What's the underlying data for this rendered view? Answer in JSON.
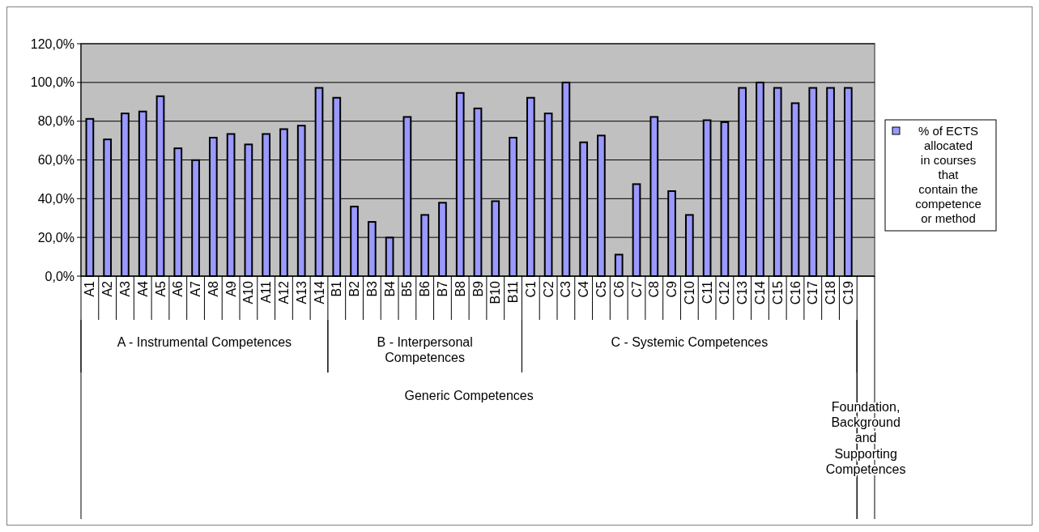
{
  "chart_data": {
    "type": "bar",
    "categories": [
      "A1",
      "A2",
      "A3",
      "A4",
      "A5",
      "A6",
      "A7",
      "A8",
      "A9",
      "A10",
      "A11",
      "A12",
      "A13",
      "A14",
      "B1",
      "B2",
      "B3",
      "B4",
      "B5",
      "B6",
      "B7",
      "B8",
      "B9",
      "B10",
      "B11",
      "C1",
      "C2",
      "C3",
      "C4",
      "C5",
      "C6",
      "C7",
      "C8",
      "C9",
      "C10",
      "C11",
      "C12",
      "C13",
      "C14",
      "C15",
      "C16",
      "C17",
      "C18",
      "C19",
      null
    ],
    "series": [
      {
        "name": "% of ECTS allocated in courses that contain the competence or method",
        "color": "#9999ff",
        "values": [
          81.2,
          70.6,
          84.0,
          85.0,
          92.9,
          66.0,
          59.9,
          71.5,
          73.4,
          68.0,
          73.4,
          75.9,
          77.7,
          97.2,
          92.1,
          35.9,
          28.0,
          19.9,
          82.2,
          31.6,
          37.9,
          94.6,
          86.6,
          38.7,
          71.5,
          92.1,
          84.0,
          100,
          69.1,
          72.6,
          11.1,
          47.5,
          82.2,
          43.9,
          31.6,
          80.5,
          79.5,
          97.2,
          100,
          97.2,
          89.3,
          97.2,
          97.2,
          97.2,
          null
        ]
      }
    ],
    "ylim": [
      0,
      120
    ],
    "yticks": [
      {
        "value": 0,
        "label": "0,0%"
      },
      {
        "value": 20,
        "label": "20,0%"
      },
      {
        "value": 40,
        "label": "40,0%"
      },
      {
        "value": 60,
        "label": "60,0%"
      },
      {
        "value": 80,
        "label": "80,0%"
      },
      {
        "value": 100,
        "label": "100,0%"
      },
      {
        "value": 120,
        "label": "120,0%"
      }
    ],
    "grid": "y",
    "legend": "right",
    "annotations": [
      "A - Instrumental Competences",
      "B - Interpersonal Competences",
      "C - Systemic Competences",
      "Generic Competences",
      "Foundation, Background and Supporting Competences"
    ]
  }
}
